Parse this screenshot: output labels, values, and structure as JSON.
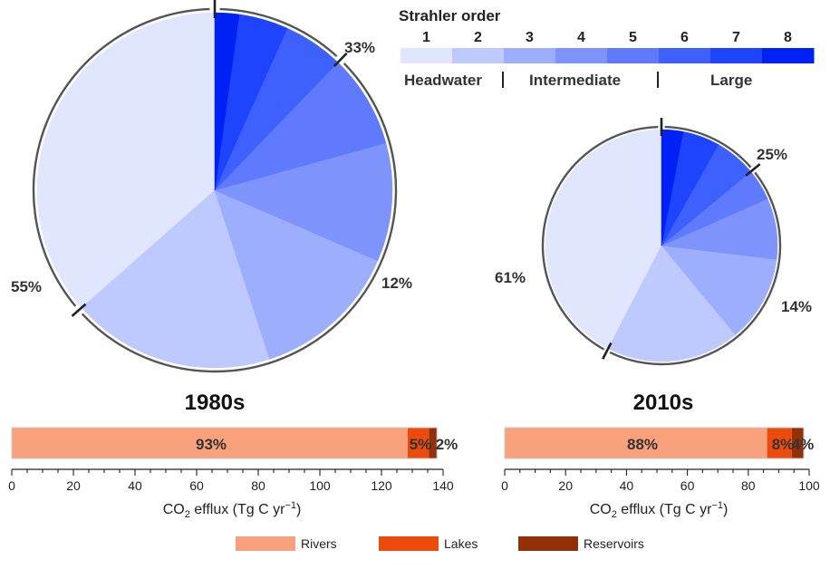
{
  "legend_scale": {
    "title": "Strahler order",
    "orders": [
      "1",
      "2",
      "3",
      "4",
      "5",
      "6",
      "7",
      "8"
    ],
    "colors": [
      "#dfe6fd",
      "#bec9fd",
      "#9daffc",
      "#7e93fc",
      "#5f7afd",
      "#3e60fd",
      "#1f44fd",
      "#0021f5"
    ],
    "groups": [
      "Headwater",
      "Intermediate",
      "Large"
    ]
  },
  "bar_legend": [
    {
      "name": "Rivers",
      "color": "#f9a07d"
    },
    {
      "name": "Lakes",
      "color": "#ec4b0c"
    },
    {
      "name": "Reservoirs",
      "color": "#933008"
    }
  ],
  "chart_data": [
    {
      "type": "pie",
      "title": "1980s",
      "values": [
        36.5,
        18.5,
        13.5,
        10.8,
        8.5,
        5.5,
        4.5,
        2.2
      ],
      "categories": [
        "1",
        "2",
        "3",
        "4",
        "5",
        "6",
        "7",
        "8"
      ],
      "group_labels": [
        {
          "group": "Headwater",
          "text": "55%"
        },
        {
          "group": "Intermediate",
          "text": "33%"
        },
        {
          "group": "Large",
          "text": "12%"
        }
      ]
    },
    {
      "type": "pie",
      "title": "2010s",
      "values": [
        42.4,
        18.6,
        12.1,
        8.5,
        4.4,
        5.8,
        5.2,
        3.0
      ],
      "categories": [
        "1",
        "2",
        "3",
        "4",
        "5",
        "6",
        "7",
        "8"
      ],
      "group_labels": [
        {
          "group": "Headwater",
          "text": "61%"
        },
        {
          "group": "Intermediate",
          "text": "25%"
        },
        {
          "group": "Large",
          "text": "14%"
        }
      ]
    },
    {
      "type": "bar",
      "orientation": "horizontal-stacked",
      "title": "1980s",
      "series": [
        {
          "name": "Rivers",
          "values": [
            128.5
          ],
          "label": "93%"
        },
        {
          "name": "Lakes",
          "values": [
            6.9
          ],
          "label": "5%"
        },
        {
          "name": "Reservoirs",
          "values": [
            2.6
          ],
          "label": "2%"
        }
      ],
      "xlabel": "CO2 efflux (Tg C yr−1)",
      "xlim": [
        0,
        140
      ],
      "ticks": [
        "0",
        "20",
        "40",
        "60",
        "80",
        "100",
        "120",
        "140"
      ]
    },
    {
      "type": "bar",
      "orientation": "horizontal-stacked",
      "title": "2010s",
      "series": [
        {
          "name": "Rivers",
          "values": [
            86.2
          ],
          "label": "88%"
        },
        {
          "name": "Lakes",
          "values": [
            8.1
          ],
          "label": "8%"
        },
        {
          "name": "Reservoirs",
          "values": [
            3.9
          ],
          "label": "4%"
        }
      ],
      "xlabel": "CO2 efflux (Tg C yr−1)",
      "xlim": [
        0,
        100
      ],
      "ticks": [
        "0",
        "20",
        "40",
        "60",
        "80",
        "100"
      ]
    }
  ]
}
